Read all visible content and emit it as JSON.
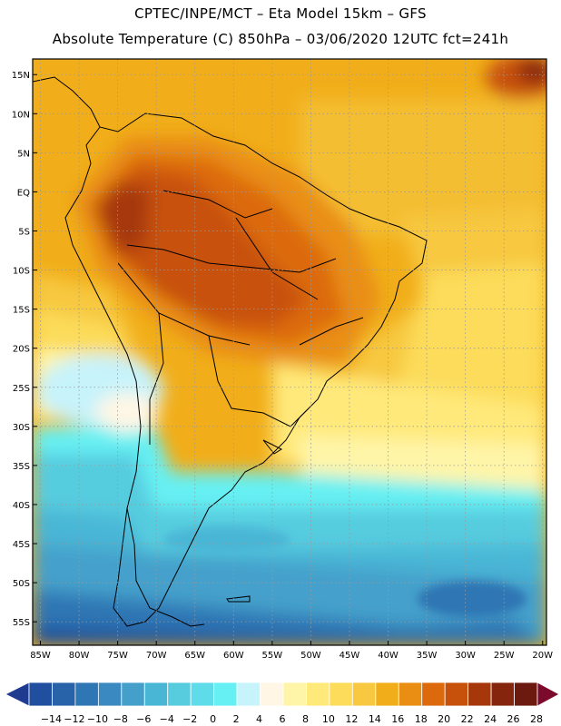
{
  "header": {
    "line1": "CPTEC/INPE/MCT –  Eta Model 15km – GFS",
    "line2": "Absolute Temperature (C) 850hPa – 03/06/2020 12UTC fct=241h"
  },
  "map": {
    "lat_labels": [
      "15N",
      "10N",
      "5N",
      "EQ",
      "5S",
      "10S",
      "15S",
      "20S",
      "25S",
      "30S",
      "35S",
      "40S",
      "45S",
      "50S",
      "55S"
    ],
    "lon_labels": [
      "85W",
      "80W",
      "75W",
      "70W",
      "65W",
      "60W",
      "55W",
      "50W",
      "45W",
      "40W",
      "35W",
      "30W",
      "25W",
      "20W"
    ],
    "lat_range": [
      17,
      -58
    ],
    "lon_range": [
      -86,
      -19.5
    ],
    "grid": "dotted"
  },
  "colorbar": {
    "labels": [
      "-14",
      "-12",
      "-10",
      "-8",
      "-6",
      "-4",
      "-2",
      "0",
      "2",
      "4",
      "6",
      "8",
      "10",
      "12",
      "14",
      "16",
      "18",
      "20",
      "22",
      "24",
      "26",
      "28"
    ],
    "colors": [
      "#1f3b8f",
      "#1f4f9e",
      "#2863a9",
      "#2f76b4",
      "#3a89c1",
      "#44a0cb",
      "#4ab6d6",
      "#57ccdf",
      "#5fdcea",
      "#66f0f3",
      "#c7f3fb",
      "#fff6e5",
      "#fff5a8",
      "#ffe97a",
      "#fcdc5a",
      "#f7c840",
      "#f1ae1a",
      "#e98e12",
      "#dc6a0c",
      "#c7510a",
      "#a6370a",
      "#86250e",
      "#6c1a10",
      "#7b0a2c"
    ]
  }
}
